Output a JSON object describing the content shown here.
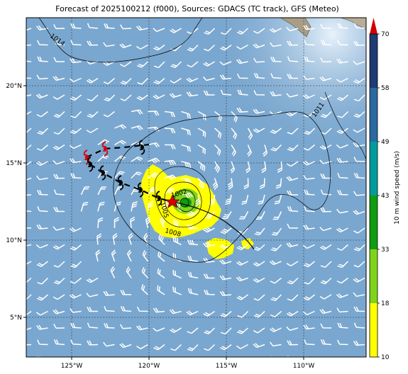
{
  "title": "Forecast of 2025100212 (f000), Sources: GDACS (TC track), GFS (Meteo)",
  "map": {
    "lon_range": [
      -128,
      -106
    ],
    "lat_range": [
      2.5,
      24.5
    ],
    "lon_ticks": [
      "125°W",
      "120°W",
      "115°W",
      "110°W"
    ],
    "lat_ticks": [
      "20°N",
      "15°N",
      "10°N",
      "5°N"
    ],
    "ocean_color": "#7aa7cf",
    "gridlines": true
  },
  "isobars": [
    {
      "label": "1014"
    },
    {
      "label": "1011"
    },
    {
      "label": "1008"
    },
    {
      "label": "1005"
    },
    {
      "label": "1002"
    }
  ],
  "storm": {
    "current_position_marker": "red-star",
    "track_past_color": "#d40000",
    "track_forecast_color": "#000000"
  },
  "colorbar": {
    "label": "10 m wind speed (m/s)",
    "levels": [
      "10",
      "18",
      "33",
      "43",
      "49",
      "58",
      "70"
    ],
    "colors": [
      "#ffff00",
      "#7fd41a",
      "#109c10",
      "#009c9c",
      "#2a6aa0",
      "#1f3b73",
      "#d40000"
    ]
  }
}
